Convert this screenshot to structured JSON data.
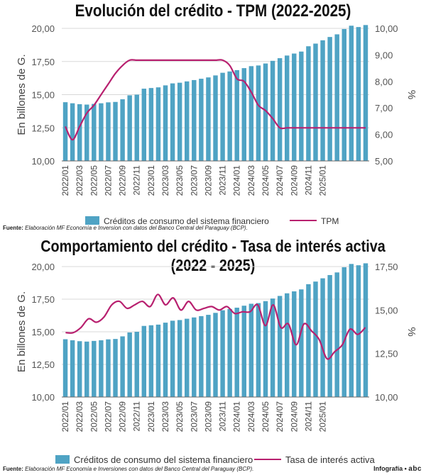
{
  "chart_data": [
    {
      "type": "bar",
      "title": "Evolución del crédito - TPM (2022-2025)",
      "ylabel": "En billones de G.",
      "y2label": "%",
      "ylim": [
        10,
        20
      ],
      "y2lim": [
        5,
        10
      ],
      "yticks": [
        "10,00",
        "12,50",
        "15,00",
        "17,50",
        "20,00"
      ],
      "y2ticks": [
        "5,00",
        "6,00",
        "7,00",
        "8,00",
        "9,00",
        "10,00"
      ],
      "xticks": [
        "2022/01",
        "2022/03",
        "2022/05",
        "2022/07",
        "2022/09",
        "2022/11",
        "2023/01",
        "2023/03",
        "2023/05",
        "2023/07",
        "2023/09",
        "2023/11",
        "2024/01",
        "2024/03",
        "2024/05",
        "2024/07",
        "2024/09",
        "2024/11",
        "2025/01"
      ],
      "bar_values": [
        14.43,
        14.35,
        14.28,
        14.25,
        14.3,
        14.35,
        14.42,
        14.45,
        14.65,
        14.95,
        15.0,
        15.45,
        15.5,
        15.55,
        15.7,
        15.85,
        15.9,
        16.0,
        16.1,
        16.2,
        16.3,
        16.45,
        16.65,
        16.75,
        16.85,
        17.0,
        17.15,
        17.2,
        17.35,
        17.55,
        17.75,
        17.95,
        18.1,
        18.25,
        18.65,
        18.85,
        19.1,
        19.35,
        19.55,
        19.95,
        20.2,
        20.1,
        20.25
      ],
      "line_values": [
        6.3,
        5.8,
        6.3,
        6.8,
        7.1,
        7.5,
        7.9,
        8.3,
        8.6,
        8.8,
        8.8,
        8.8,
        8.8,
        8.8,
        8.8,
        8.8,
        8.8,
        8.8,
        8.8,
        8.8,
        8.8,
        8.8,
        8.8,
        8.6,
        8.1,
        8.0,
        7.6,
        7.1,
        6.9,
        6.6,
        6.25,
        6.25,
        6.25,
        6.25,
        6.25,
        6.25,
        6.25,
        6.25,
        6.25,
        6.25,
        6.25,
        6.25,
        6.25
      ],
      "legend_bar": "Créditos de consumo del sistema financiero",
      "legend_line": "TPM",
      "source_label": "Fuente:",
      "source_text": "Elaboración MF Economía e Inversion con datos del Banco Central del Paraguay (BCP).",
      "colors": {
        "bar": "#4fa3c4",
        "line": "#b8206f",
        "grid": "#d8d8d8",
        "axis": "#666666"
      }
    },
    {
      "type": "bar",
      "title": "Comportamiento del crédito - Tasa de interés activa (2022 - 2025)",
      "ylabel": "En billones de G.",
      "y2label": "%",
      "ylim": [
        10,
        20
      ],
      "y2lim": [
        10,
        17.5
      ],
      "yticks": [
        "10,00",
        "12,50",
        "15,00",
        "17,50",
        "20,00"
      ],
      "y2ticks": [
        "10,00",
        "12,50",
        "15,00",
        "17,50"
      ],
      "xticks": [
        "2022/01",
        "2022/03",
        "2022/05",
        "2022/07",
        "2022/09",
        "2022/11",
        "2023/01",
        "2023/03",
        "2023/05",
        "2023/07",
        "2023/09",
        "2023/11",
        "2024/01",
        "2024/03",
        "2024/05",
        "2024/07",
        "2024/09",
        "2024/11",
        "2025/01"
      ],
      "bar_values": [
        14.43,
        14.35,
        14.28,
        14.25,
        14.3,
        14.35,
        14.42,
        14.45,
        14.65,
        14.95,
        15.0,
        15.45,
        15.5,
        15.55,
        15.7,
        15.85,
        15.9,
        16.0,
        16.1,
        16.2,
        16.3,
        16.45,
        16.65,
        16.75,
        16.85,
        17.0,
        17.15,
        17.2,
        17.35,
        17.55,
        17.75,
        17.95,
        18.1,
        18.25,
        18.65,
        18.85,
        19.1,
        19.35,
        19.55,
        19.95,
        20.2,
        20.1,
        20.25
      ],
      "line_values": [
        13.7,
        13.7,
        14.0,
        14.5,
        14.3,
        14.6,
        15.3,
        15.5,
        15.1,
        15.3,
        15.5,
        15.2,
        15.9,
        15.3,
        15.7,
        15.0,
        15.5,
        15.0,
        15.1,
        15.2,
        15.0,
        15.2,
        14.8,
        14.9,
        14.9,
        15.3,
        14.1,
        15.3,
        14.0,
        14.2,
        13.0,
        14.2,
        13.8,
        13.3,
        12.2,
        12.6,
        13.0,
        13.9,
        13.6,
        14.0
      ],
      "legend_bar": "Créditos de consumo del sistema financiero",
      "legend_line": "Tasa de interés activa",
      "source_label": "Fuente:",
      "source_text": "Elaboración MF Economía e Inversiones con datos del Banco Central del Paraguay (BCP).",
      "colors": {
        "bar": "#4fa3c4",
        "line": "#b8206f",
        "grid": "#d8d8d8",
        "axis": "#666666"
      }
    }
  ],
  "credit": {
    "label": "Infografía •",
    "logo": "abc"
  }
}
